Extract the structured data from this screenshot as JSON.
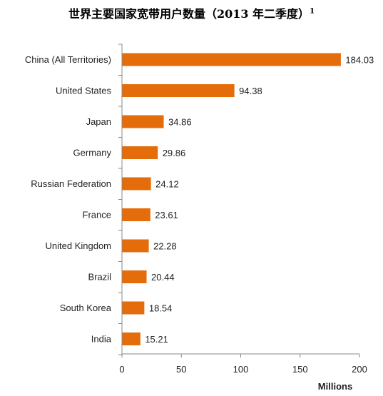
{
  "chart_data": {
    "type": "bar",
    "orientation": "horizontal",
    "title": "世界主要国家宽带用户数量（2013 年二季度）",
    "title_superscript": "1",
    "categories": [
      "China (All Territories)",
      "United States",
      "Japan",
      "Germany",
      "Russian Federation",
      "France",
      "United Kingdom",
      "Brazil",
      "South Korea",
      "India"
    ],
    "values": [
      184.03,
      94.38,
      34.86,
      29.86,
      24.12,
      23.61,
      22.28,
      20.44,
      18.54,
      15.21
    ],
    "value_labels": [
      "184.03",
      "94.38",
      "34.86",
      "29.86",
      "24.12",
      "23.61",
      "22.28",
      "20.44",
      "18.54",
      "15.21"
    ],
    "xlabel": "Millions",
    "ylabel": "",
    "xlim": [
      0,
      200
    ],
    "xticks": [
      0,
      50,
      100,
      150,
      200
    ],
    "grid": false,
    "legend": "none",
    "bar_color": "#E46C0A"
  }
}
